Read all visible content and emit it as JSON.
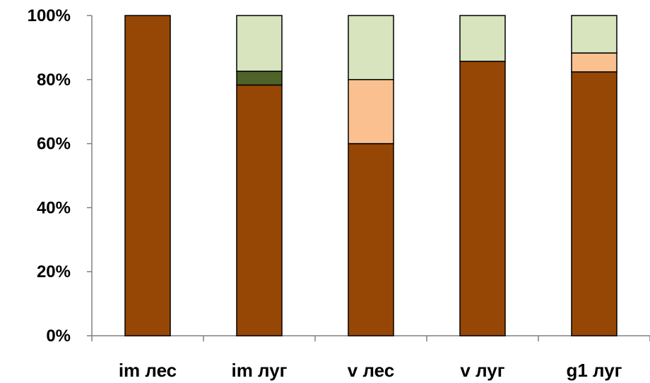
{
  "colors": {
    "axis": "#808080",
    "bar_stroke": "#000000",
    "background": "#ffffff"
  },
  "chart_data": {
    "type": "bar",
    "stacked": true,
    "percent": true,
    "title": "",
    "xlabel": "",
    "ylabel": "",
    "ylim": [
      0,
      100
    ],
    "grid": false,
    "legend": "none",
    "y_ticks": [
      "0%",
      "20%",
      "40%",
      "60%",
      "80%",
      "100%"
    ],
    "categories": [
      "im лес",
      "im луг",
      "v лес",
      "v луг",
      "g1 луг"
    ],
    "series": [
      {
        "color": "#964706",
        "values": [
          100,
          78.3,
          60,
          85.7,
          82.4
        ]
      },
      {
        "color": "#4f6228",
        "values": [
          0,
          4.3,
          0,
          0,
          0
        ]
      },
      {
        "color": "#fac090",
        "values": [
          0,
          0,
          20,
          0,
          5.9
        ]
      },
      {
        "color": "#d7e4bd",
        "values": [
          0,
          17.4,
          20,
          14.3,
          11.7
        ]
      }
    ]
  }
}
